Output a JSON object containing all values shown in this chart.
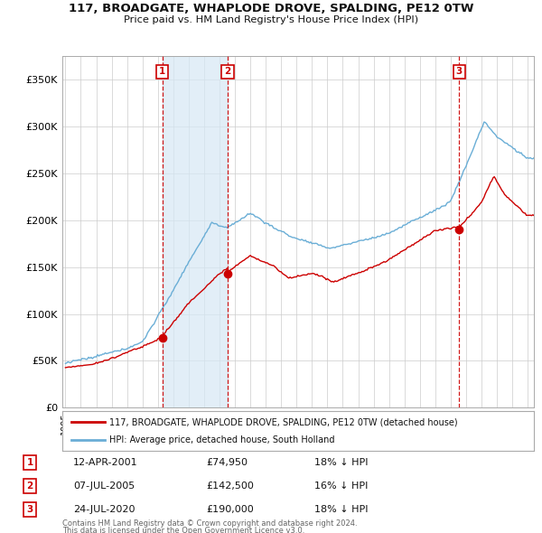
{
  "title": "117, BROADGATE, WHAPLODE DROVE, SPALDING, PE12 0TW",
  "subtitle": "Price paid vs. HM Land Registry's House Price Index (HPI)",
  "legend_line1": "117, BROADGATE, WHAPLODE DROVE, SPALDING, PE12 0TW (detached house)",
  "legend_line2": "HPI: Average price, detached house, South Holland",
  "transactions": [
    {
      "num": 1,
      "date": "12-APR-2001",
      "price": 74950,
      "pct": "18%",
      "dir": "↓",
      "year": 2001.28
    },
    {
      "num": 2,
      "date": "07-JUL-2005",
      "price": 142500,
      "pct": "16%",
      "dir": "↓",
      "year": 2005.53
    },
    {
      "num": 3,
      "date": "24-JUL-2020",
      "price": 190000,
      "pct": "18%",
      "dir": "↓",
      "year": 2020.56
    }
  ],
  "footnote1": "Contains HM Land Registry data © Crown copyright and database right 2024.",
  "footnote2": "This data is licensed under the Open Government Licence v3.0.",
  "hpi_color": "#6aaed6",
  "hpi_fill_color": "#d6e8f5",
  "price_color": "#cc0000",
  "dot_color": "#cc0000",
  "vline_color": "#cc0000",
  "background_color": "#ffffff",
  "grid_color": "#cccccc",
  "ylim": [
    0,
    375000
  ],
  "yticks": [
    0,
    50000,
    100000,
    150000,
    200000,
    250000,
    300000,
    350000
  ],
  "xmin": 1994.8,
  "xmax": 2025.4
}
